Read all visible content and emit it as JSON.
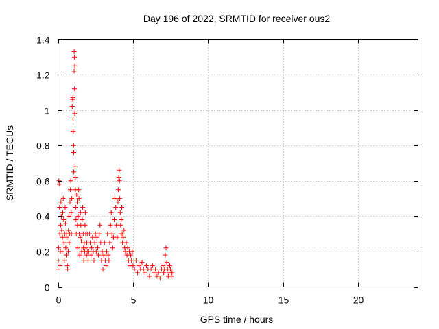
{
  "chart_data": {
    "type": "scatter",
    "title": "Day 196 of 2022, SRMTID for receiver ous2",
    "xlabel": "GPS time / hours",
    "ylabel": "SRMTID / TECUs",
    "xlim": [
      0,
      24
    ],
    "ylim": [
      0,
      1.4
    ],
    "xticks": [
      0,
      5,
      10,
      15,
      20
    ],
    "xtick_labels": [
      "0",
      "5",
      "10",
      "15",
      "20"
    ],
    "yticks": [
      0,
      0.2,
      0.4,
      0.6,
      0.8,
      1,
      1.2,
      1.4
    ],
    "ytick_labels": [
      "0",
      "0.2",
      "0.4",
      "0.6",
      "0.8",
      "1",
      "1.2",
      "1.4"
    ],
    "grid": true,
    "marker": "plus",
    "color": "#ff0000",
    "series": [
      {
        "name": "SRMTID",
        "x": [
          0.0,
          0.02,
          0.04,
          0.06,
          0.08,
          0.1,
          0.12,
          0.14,
          0.16,
          0.18,
          0.2,
          0.22,
          0.25,
          0.28,
          0.3,
          0.32,
          0.35,
          0.38,
          0.4,
          0.42,
          0.45,
          0.48,
          0.5,
          0.52,
          0.55,
          0.58,
          0.6,
          0.62,
          0.65,
          0.68,
          0.7,
          0.72,
          0.75,
          0.78,
          0.8,
          0.82,
          0.85,
          0.88,
          0.9,
          0.92,
          0.95,
          0.98,
          1.0,
          1.0,
          1.02,
          1.04,
          1.05,
          1.06,
          1.08,
          1.08,
          1.1,
          1.1,
          1.12,
          1.12,
          1.14,
          1.15,
          1.16,
          1.18,
          1.2,
          1.22,
          1.25,
          1.28,
          1.3,
          1.32,
          1.35,
          1.38,
          1.4,
          1.42,
          1.45,
          1.48,
          1.5,
          1.52,
          1.55,
          1.58,
          1.6,
          1.62,
          1.65,
          1.68,
          1.7,
          1.72,
          1.75,
          1.78,
          1.8,
          1.82,
          1.85,
          1.88,
          1.9,
          1.92,
          1.95,
          1.98,
          2.0,
          2.05,
          2.1,
          2.15,
          2.2,
          2.25,
          2.3,
          2.35,
          2.4,
          2.45,
          2.5,
          2.55,
          2.6,
          2.65,
          2.7,
          2.75,
          2.8,
          2.85,
          2.9,
          2.95,
          3.0,
          3.05,
          3.1,
          3.15,
          3.2,
          3.25,
          3.3,
          3.35,
          3.4,
          3.45,
          3.5,
          3.55,
          3.6,
          3.65,
          3.7,
          3.75,
          3.8,
          3.85,
          3.9,
          3.95,
          4.0,
          4.02,
          4.05,
          4.08,
          4.1,
          4.12,
          4.15,
          4.18,
          4.2,
          4.22,
          4.25,
          4.28,
          4.3,
          4.35,
          4.4,
          4.45,
          4.5,
          4.55,
          4.6,
          4.65,
          4.7,
          4.75,
          4.8,
          4.85,
          4.9,
          4.95,
          5.0,
          5.1,
          5.2,
          5.3,
          5.4,
          5.5,
          5.6,
          5.7,
          5.8,
          5.9,
          6.0,
          6.1,
          6.2,
          6.3,
          6.4,
          6.5,
          6.6,
          6.7,
          6.8,
          6.9,
          7.0,
          7.05,
          7.1,
          7.15,
          7.2,
          7.25,
          7.3,
          7.35,
          7.4,
          7.45,
          7.5,
          7.55,
          7.6
        ],
        "values": [
          0.1,
          0.15,
          0.22,
          0.6,
          0.58,
          0.45,
          0.3,
          0.12,
          0.2,
          0.35,
          0.48,
          0.4,
          0.32,
          0.2,
          0.28,
          0.42,
          0.5,
          0.38,
          0.25,
          0.15,
          0.3,
          0.45,
          0.36,
          0.22,
          0.18,
          0.3,
          0.28,
          0.12,
          0.1,
          0.2,
          0.32,
          0.4,
          0.25,
          0.3,
          0.48,
          0.55,
          0.6,
          0.42,
          0.3,
          0.5,
          1.02,
          1.06,
          0.95,
          1.07,
          0.88,
          0.8,
          0.76,
          0.65,
          1.22,
          1.33,
          1.12,
          1.3,
          1.25,
          0.98,
          0.68,
          0.62,
          0.55,
          0.45,
          0.38,
          0.3,
          0.52,
          0.48,
          0.35,
          0.22,
          0.4,
          0.55,
          0.5,
          0.3,
          0.18,
          0.28,
          0.42,
          0.35,
          0.26,
          0.2,
          0.3,
          0.38,
          0.45,
          0.3,
          0.22,
          0.15,
          0.25,
          0.2,
          0.35,
          0.42,
          0.3,
          0.22,
          0.18,
          0.25,
          0.3,
          0.2,
          0.15,
          0.2,
          0.3,
          0.25,
          0.18,
          0.22,
          0.28,
          0.2,
          0.15,
          0.25,
          0.3,
          0.2,
          0.28,
          0.22,
          0.18,
          0.3,
          0.35,
          0.25,
          0.15,
          0.2,
          0.1,
          0.18,
          0.25,
          0.15,
          0.12,
          0.2,
          0.3,
          0.18,
          0.15,
          0.25,
          0.35,
          0.42,
          0.3,
          0.22,
          0.28,
          0.38,
          0.5,
          0.45,
          0.35,
          0.28,
          0.48,
          0.55,
          0.62,
          0.66,
          0.6,
          0.5,
          0.42,
          0.35,
          0.3,
          0.38,
          0.45,
          0.3,
          0.25,
          0.28,
          0.32,
          0.22,
          0.2,
          0.25,
          0.18,
          0.22,
          0.15,
          0.2,
          0.12,
          0.18,
          0.15,
          0.2,
          0.12,
          0.1,
          0.15,
          0.08,
          0.12,
          0.1,
          0.14,
          0.1,
          0.08,
          0.12,
          0.1,
          0.06,
          0.1,
          0.12,
          0.08,
          0.1,
          0.06,
          0.08,
          0.05,
          0.1,
          0.12,
          0.08,
          0.1,
          0.18,
          0.22,
          0.14,
          0.1,
          0.06,
          0.08,
          0.12,
          0.1,
          0.06,
          0.08
        ]
      }
    ]
  }
}
